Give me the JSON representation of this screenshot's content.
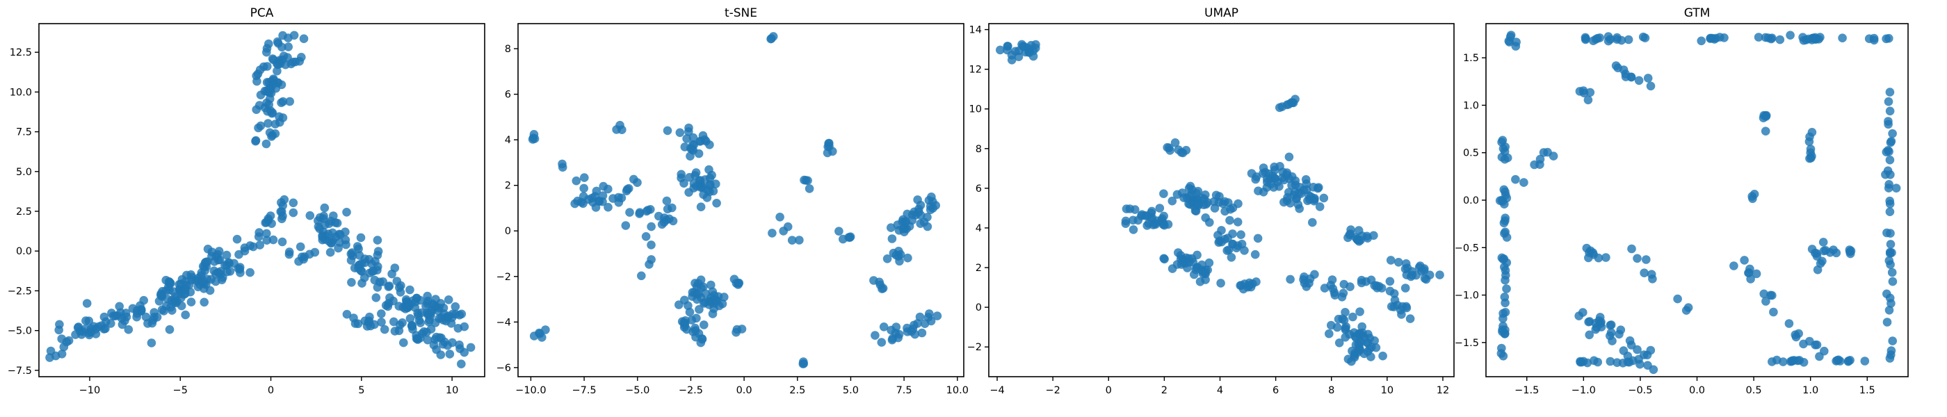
{
  "figure": {
    "point_color": "#1f77b4",
    "point_opacity": 0.8
  },
  "chart_data": [
    {
      "type": "scatter",
      "title": "PCA",
      "xlabel": "",
      "ylabel": "",
      "xlim": [
        -12.8,
        11.8
      ],
      "ylim": [
        -7.9,
        14.3
      ],
      "xticks": [
        -10,
        -5,
        0,
        5,
        10
      ],
      "xtick_labels": [
        "−10",
        "−5",
        "0",
        "5",
        "10"
      ],
      "yticks": [
        -7.5,
        -5.0,
        -2.5,
        0.0,
        2.5,
        5.0,
        7.5,
        10.0,
        12.5
      ],
      "ytick_labels": [
        "−7.5",
        "−5.0",
        "−2.5",
        "0.0",
        "2.5",
        "5.0",
        "7.5",
        "10.0",
        "12.5"
      ],
      "grid": false,
      "legend": "none",
      "clusters": [
        {
          "x0": -10.5,
          "y0": -5.0,
          "x1": -7.0,
          "y1": -3.8,
          "n": 40,
          "spread": 0.45
        },
        {
          "x0": -7.0,
          "y0": -4.0,
          "x1": -1.8,
          "y1": -0.2,
          "n": 120,
          "spread": 0.55
        },
        {
          "x0": -12.0,
          "y0": -6.5,
          "x1": -10.5,
          "y1": -5.0,
          "n": 12,
          "spread": 0.3
        },
        {
          "x0": -0.2,
          "y0": 8.5,
          "x1": 0.8,
          "y1": 13.2,
          "n": 70,
          "spread": 0.45
        },
        {
          "x0": -0.8,
          "y0": 6.5,
          "x1": 0.0,
          "y1": 8.0,
          "n": 10,
          "spread": 0.3
        },
        {
          "x0": -0.8,
          "y0": 0.5,
          "x1": 0.8,
          "y1": 3.0,
          "n": 22,
          "spread": 0.35
        },
        {
          "x0": 0.8,
          "y0": 0.0,
          "x1": 2.5,
          "y1": -0.6,
          "n": 10,
          "spread": 0.3
        },
        {
          "x0": 2.5,
          "y0": 2.3,
          "x1": 6.5,
          "y1": -2.5,
          "n": 80,
          "spread": 0.55
        },
        {
          "x0": 6.5,
          "y0": -2.8,
          "x1": 10.2,
          "y1": -4.2,
          "n": 70,
          "spread": 0.55
        },
        {
          "x0": 6.8,
          "y0": -4.5,
          "x1": 10.8,
          "y1": -6.5,
          "n": 40,
          "spread": 0.45
        },
        {
          "x0": 4.0,
          "y0": -4.0,
          "x1": 6.0,
          "y1": -4.8,
          "n": 12,
          "spread": 0.35
        }
      ]
    },
    {
      "type": "scatter",
      "title": "t-SNE",
      "xlabel": "",
      "ylabel": "",
      "xlim": [
        -10.6,
        10.3
      ],
      "ylim": [
        -6.4,
        9.1
      ],
      "xticks": [
        -10.0,
        -7.5,
        -5.0,
        -2.5,
        0.0,
        2.5,
        5.0,
        7.5,
        10.0
      ],
      "xtick_labels": [
        "−10.0",
        "−7.5",
        "−5.0",
        "−2.5",
        "0.0",
        "2.5",
        "5.0",
        "7.5",
        "10.0"
      ],
      "yticks": [
        -6,
        -4,
        -2,
        0,
        2,
        4,
        6,
        8
      ],
      "ytick_labels": [
        "−6",
        "−4",
        "−2",
        "0",
        "2",
        "4",
        "6",
        "8"
      ],
      "grid": false,
      "legend": "none",
      "clusters": [
        {
          "x0": -9.8,
          "y0": 4.1,
          "x1": -9.7,
          "y1": 4.2,
          "n": 4,
          "spread": 0.08
        },
        {
          "x0": -9.7,
          "y0": -4.5,
          "x1": -9.3,
          "y1": -4.3,
          "n": 5,
          "spread": 0.12
        },
        {
          "x0": -8.5,
          "y0": 2.8,
          "x1": -8.5,
          "y1": 2.8,
          "n": 2,
          "spread": 0.1
        },
        {
          "x0": -7.5,
          "y0": 1.4,
          "x1": -5.2,
          "y1": 1.8,
          "n": 30,
          "spread": 0.3
        },
        {
          "x0": -6.0,
          "y0": 4.5,
          "x1": -5.8,
          "y1": 4.6,
          "n": 3,
          "spread": 0.1
        },
        {
          "x0": -5.0,
          "y0": 0.8,
          "x1": -3.6,
          "y1": 0.5,
          "n": 18,
          "spread": 0.3
        },
        {
          "x0": -3.2,
          "y0": 4.6,
          "x1": -2.0,
          "y1": 3.4,
          "n": 20,
          "spread": 0.3
        },
        {
          "x0": -2.8,
          "y0": 2.4,
          "x1": -1.3,
          "y1": 1.6,
          "n": 30,
          "spread": 0.35
        },
        {
          "x0": -2.5,
          "y0": -2.7,
          "x1": -1.2,
          "y1": -3.2,
          "n": 40,
          "spread": 0.3
        },
        {
          "x0": -2.4,
          "y0": -4.0,
          "x1": -2.0,
          "y1": -5.0,
          "n": 12,
          "spread": 0.2
        },
        {
          "x0": -3.0,
          "y0": -4.1,
          "x1": -2.6,
          "y1": -4.1,
          "n": 6,
          "spread": 0.1
        },
        {
          "x0": 1.3,
          "y0": 8.4,
          "x1": 1.3,
          "y1": 8.5,
          "n": 3,
          "spread": 0.05
        },
        {
          "x0": 1.5,
          "y0": 0.5,
          "x1": 2.1,
          "y1": -0.4,
          "n": 6,
          "spread": 0.2
        },
        {
          "x0": 4.0,
          "y0": 3.9,
          "x1": 4.1,
          "y1": 3.4,
          "n": 6,
          "spread": 0.1
        },
        {
          "x0": 2.6,
          "y0": 2.7,
          "x1": 3.1,
          "y1": 1.8,
          "n": 4,
          "spread": 0.15
        },
        {
          "x0": 2.7,
          "y0": -5.8,
          "x1": 2.8,
          "y1": -5.8,
          "n": 3,
          "spread": 0.05
        },
        {
          "x0": 6.2,
          "y0": -2.2,
          "x1": 6.6,
          "y1": -2.4,
          "n": 5,
          "spread": 0.1
        },
        {
          "x0": 6.3,
          "y0": -4.6,
          "x1": 9.0,
          "y1": -3.8,
          "n": 24,
          "spread": 0.2
        },
        {
          "x0": 7.2,
          "y0": 0.0,
          "x1": 9.0,
          "y1": 1.3,
          "n": 34,
          "spread": 0.3
        },
        {
          "x0": 7.0,
          "y0": -0.9,
          "x1": 7.6,
          "y1": -1.4,
          "n": 8,
          "spread": 0.2
        },
        {
          "x0": 4.5,
          "y0": 0.0,
          "x1": 5.2,
          "y1": -0.4,
          "n": 5,
          "spread": 0.15
        },
        {
          "x0": -0.5,
          "y0": -1.8,
          "x1": 0.0,
          "y1": -2.6,
          "n": 5,
          "spread": 0.2
        },
        {
          "x0": -0.6,
          "y0": -4.3,
          "x1": -0.1,
          "y1": -4.4,
          "n": 3,
          "spread": 0.1
        },
        {
          "x0": -4.5,
          "y0": -2.0,
          "x1": -4.3,
          "y1": -0.6,
          "n": 5,
          "spread": 0.2
        }
      ]
    },
    {
      "type": "scatter",
      "title": "UMAP",
      "xlabel": "",
      "ylabel": "",
      "xlim": [
        -4.3,
        12.4
      ],
      "ylim": [
        -3.5,
        14.3
      ],
      "xticks": [
        -4,
        -2,
        0,
        2,
        4,
        6,
        8,
        10,
        12
      ],
      "xtick_labels": [
        "−4",
        "−2",
        "0",
        "2",
        "4",
        "6",
        "8",
        "10",
        "12"
      ],
      "yticks": [
        -2,
        0,
        2,
        4,
        6,
        8,
        10,
        12,
        14
      ],
      "ytick_labels": [
        "−2",
        "0",
        "2",
        "4",
        "6",
        "8",
        "10",
        "12",
        "14"
      ],
      "grid": false,
      "legend": "none",
      "clusters": [
        {
          "x0": -3.6,
          "y0": 12.8,
          "x1": -2.8,
          "y1": 13.1,
          "n": 22,
          "spread": 0.2
        },
        {
          "x0": 6.3,
          "y0": 10.1,
          "x1": 6.7,
          "y1": 10.3,
          "n": 8,
          "spread": 0.12
        },
        {
          "x0": 0.8,
          "y0": 4.6,
          "x1": 2.0,
          "y1": 4.4,
          "n": 30,
          "spread": 0.3
        },
        {
          "x0": 2.3,
          "y0": 8.2,
          "x1": 2.6,
          "y1": 7.8,
          "n": 8,
          "spread": 0.15
        },
        {
          "x0": 2.4,
          "y0": 5.8,
          "x1": 4.5,
          "y1": 5.0,
          "n": 50,
          "spread": 0.4
        },
        {
          "x0": 2.4,
          "y0": 2.4,
          "x1": 3.6,
          "y1": 1.6,
          "n": 35,
          "spread": 0.35
        },
        {
          "x0": 3.8,
          "y0": 3.7,
          "x1": 5.0,
          "y1": 3.0,
          "n": 20,
          "spread": 0.3
        },
        {
          "x0": 4.8,
          "y0": 1.2,
          "x1": 5.2,
          "y1": 0.9,
          "n": 10,
          "spread": 0.15
        },
        {
          "x0": 5.7,
          "y0": 6.7,
          "x1": 7.4,
          "y1": 5.3,
          "n": 65,
          "spread": 0.4
        },
        {
          "x0": 8.6,
          "y0": 3.7,
          "x1": 9.3,
          "y1": 3.4,
          "n": 15,
          "spread": 0.15
        },
        {
          "x0": 6.9,
          "y0": 1.6,
          "x1": 7.3,
          "y1": 1.2,
          "n": 8,
          "spread": 0.15
        },
        {
          "x0": 7.9,
          "y0": 1.2,
          "x1": 8.6,
          "y1": 0.8,
          "n": 10,
          "spread": 0.2
        },
        {
          "x0": 8.9,
          "y0": 1.4,
          "x1": 9.8,
          "y1": 1.0,
          "n": 10,
          "spread": 0.2
        },
        {
          "x0": 8.2,
          "y0": -0.6,
          "x1": 9.3,
          "y1": -2.5,
          "n": 50,
          "spread": 0.3
        },
        {
          "x0": 10.4,
          "y0": 2.0,
          "x1": 11.6,
          "y1": 1.4,
          "n": 20,
          "spread": 0.25
        },
        {
          "x0": 10.1,
          "y0": 0.8,
          "x1": 10.6,
          "y1": -0.5,
          "n": 12,
          "spread": 0.2
        }
      ]
    },
    {
      "type": "scatter",
      "title": "GTM",
      "xlabel": "",
      "ylabel": "",
      "xlim": [
        -1.86,
        1.86
      ],
      "ylim": [
        -1.86,
        1.86
      ],
      "xticks": [
        -1.5,
        -1.0,
        -0.5,
        0.0,
        0.5,
        1.0,
        1.5
      ],
      "xtick_labels": [
        "−1.5",
        "−1.0",
        "−0.5",
        "0.0",
        "0.5",
        "1.0",
        "1.5"
      ],
      "yticks": [
        -1.5,
        -1.0,
        -0.5,
        0.0,
        0.5,
        1.0,
        1.5
      ],
      "ytick_labels": [
        "−1.5",
        "−1.0",
        "−0.5",
        "0.0",
        "0.5",
        "1.0",
        "1.5"
      ],
      "grid": false,
      "legend": "none",
      "clusters": [
        {
          "x0": -1.7,
          "y0": 0.9,
          "x1": -1.7,
          "y1": -1.7,
          "n": 45,
          "spread": 0.015
        },
        {
          "x0": -1.65,
          "y0": 1.72,
          "x1": -1.6,
          "y1": 1.66,
          "n": 6,
          "spread": 0.02
        },
        {
          "x0": -1.6,
          "y0": 0.2,
          "x1": -1.3,
          "y1": 0.5,
          "n": 8,
          "spread": 0.03
        },
        {
          "x0": -1.0,
          "y0": 1.7,
          "x1": -0.4,
          "y1": 1.7,
          "n": 16,
          "spread": 0.015
        },
        {
          "x0": -0.7,
          "y0": 1.35,
          "x1": -0.4,
          "y1": 1.25,
          "n": 10,
          "spread": 0.04
        },
        {
          "x0": -1.0,
          "y0": 1.1,
          "x1": -0.8,
          "y1": 1.2,
          "n": 5,
          "spread": 0.04
        },
        {
          "x0": 0.0,
          "y0": 1.7,
          "x1": 0.3,
          "y1": 1.7,
          "n": 8,
          "spread": 0.01
        },
        {
          "x0": 0.5,
          "y0": 1.7,
          "x1": 1.3,
          "y1": 1.7,
          "n": 20,
          "spread": 0.015
        },
        {
          "x0": 1.5,
          "y0": 1.7,
          "x1": 1.7,
          "y1": 1.7,
          "n": 5,
          "spread": 0.01
        },
        {
          "x0": 1.7,
          "y0": 1.5,
          "x1": 1.7,
          "y1": -1.7,
          "n": 40,
          "spread": 0.015
        },
        {
          "x0": 1.0,
          "y0": 0.9,
          "x1": 1.0,
          "y1": 0.4,
          "n": 8,
          "spread": 0.01
        },
        {
          "x0": 0.6,
          "y0": 1.0,
          "x1": 0.6,
          "y1": 0.6,
          "n": 6,
          "spread": 0.01
        },
        {
          "x0": -1.0,
          "y0": -1.2,
          "x1": -0.4,
          "y1": -1.7,
          "n": 30,
          "spread": 0.05
        },
        {
          "x0": -1.0,
          "y0": -0.55,
          "x1": -0.8,
          "y1": -0.6,
          "n": 8,
          "spread": 0.03
        },
        {
          "x0": -1.1,
          "y0": -1.7,
          "x1": -0.3,
          "y1": -1.7,
          "n": 15,
          "spread": 0.01
        },
        {
          "x0": -0.6,
          "y0": -0.5,
          "x1": -0.4,
          "y1": -0.8,
          "n": 6,
          "spread": 0.04
        },
        {
          "x0": 0.4,
          "y0": -0.7,
          "x1": 0.8,
          "y1": -1.2,
          "n": 12,
          "spread": 0.04
        },
        {
          "x0": 0.6,
          "y0": -1.7,
          "x1": 1.0,
          "y1": -1.7,
          "n": 10,
          "spread": 0.01
        },
        {
          "x0": 1.0,
          "y0": -0.55,
          "x1": 1.4,
          "y1": -0.55,
          "n": 12,
          "spread": 0.02
        },
        {
          "x0": 0.8,
          "y0": -1.3,
          "x1": 1.1,
          "y1": -1.6,
          "n": 10,
          "spread": 0.04
        },
        {
          "x0": 1.2,
          "y0": -1.7,
          "x1": 1.5,
          "y1": -1.7,
          "n": 8,
          "spread": 0.01
        },
        {
          "x0": 1.1,
          "y0": -0.3,
          "x1": 1.1,
          "y1": -0.8,
          "n": 5,
          "spread": 0.02
        },
        {
          "x0": 0.5,
          "y0": 0.15,
          "x1": 0.5,
          "y1": -0.1,
          "n": 3,
          "spread": 0.02
        },
        {
          "x0": -0.2,
          "y0": -1.05,
          "x1": 0.0,
          "y1": -1.2,
          "n": 3,
          "spread": 0.02
        }
      ]
    }
  ]
}
